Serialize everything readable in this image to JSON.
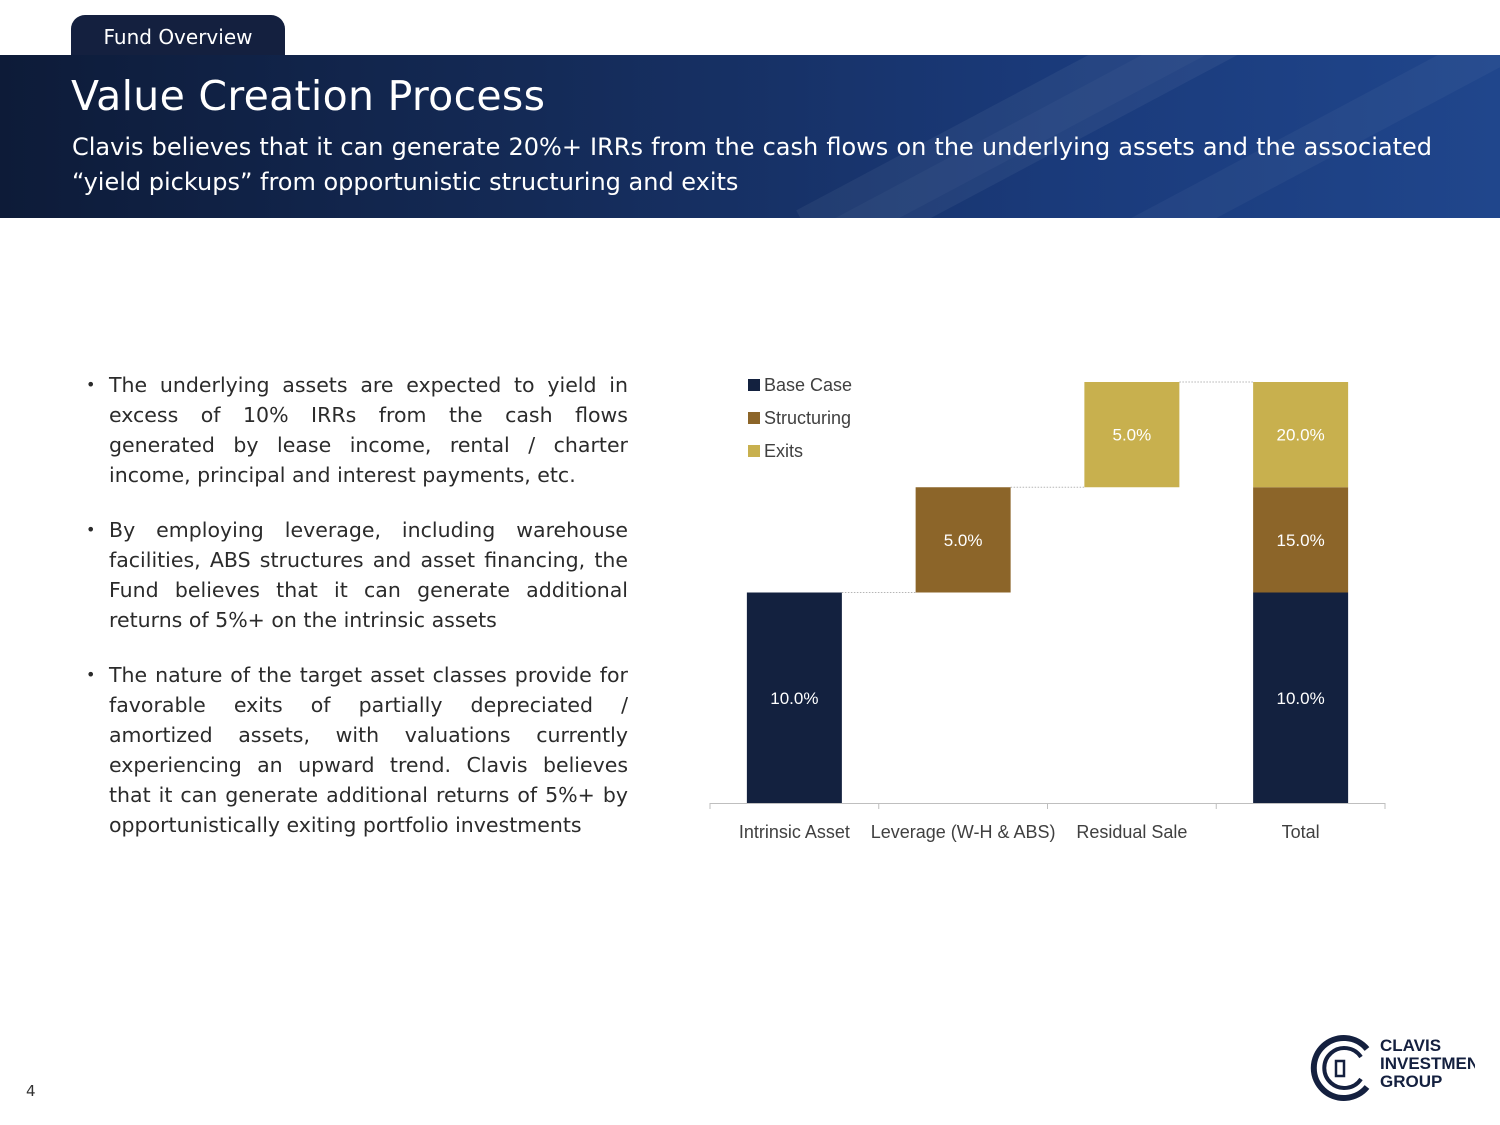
{
  "header": {
    "tab_label": "Fund Overview",
    "title": "Value Creation Process",
    "subtitle": "Clavis believes that it can generate 20%+ IRRs from the cash flows on the underlying assets and the associated “yield pickups” from opportunistic structuring and exits"
  },
  "bullets": [
    "The underlying assets are expected to yield in excess of 10% IRRs from the cash flows generated by lease income, rental / charter income, principal and interest payments, etc.",
    "By employing leverage, including warehouse facilities, ABS structures and asset financing, the Fund believes that it can generate additional returns of 5%+ on the intrinsic assets",
    "The nature of the target asset classes provide for favorable exits of partially depreciated / amortized assets, with valuations currently experiencing an upward trend. Clavis believes that it can generate additional returns of 5%+ by opportunistically exiting portfolio investments"
  ],
  "chart_data": {
    "type": "bar",
    "subtype": "waterfall",
    "categories": [
      "Intrinsic Asset",
      "Leverage (W-H & ABS)",
      "Residual Sale",
      "Total"
    ],
    "series": [
      {
        "name": "Base Case",
        "color": "#13213f",
        "bars": [
          {
            "cat": 0,
            "base": 0,
            "value": 10.0,
            "label": "10.0%"
          },
          {
            "cat": 3,
            "base": 0,
            "value": 10.0,
            "label": "10.0%"
          }
        ]
      },
      {
        "name": "Structuring",
        "color": "#8c6529",
        "bars": [
          {
            "cat": 1,
            "base": 10.0,
            "value": 5.0,
            "label": "5.0%"
          },
          {
            "cat": 3,
            "base": 10.0,
            "value": 5.0,
            "label": "15.0%"
          }
        ]
      },
      {
        "name": "Exits",
        "color": "#c8b04e",
        "bars": [
          {
            "cat": 2,
            "base": 15.0,
            "value": 5.0,
            "label": "5.0%"
          },
          {
            "cat": 3,
            "base": 15.0,
            "value": 5.0,
            "label": "20.0%"
          }
        ]
      }
    ],
    "ylim": [
      0,
      20
    ],
    "legend_position": "top-left",
    "connectors": true,
    "grid": false
  },
  "footer": {
    "page_number": "4",
    "logo_lines": [
      "CLAVIS",
      "INVESTMENT",
      "GROUP"
    ]
  }
}
